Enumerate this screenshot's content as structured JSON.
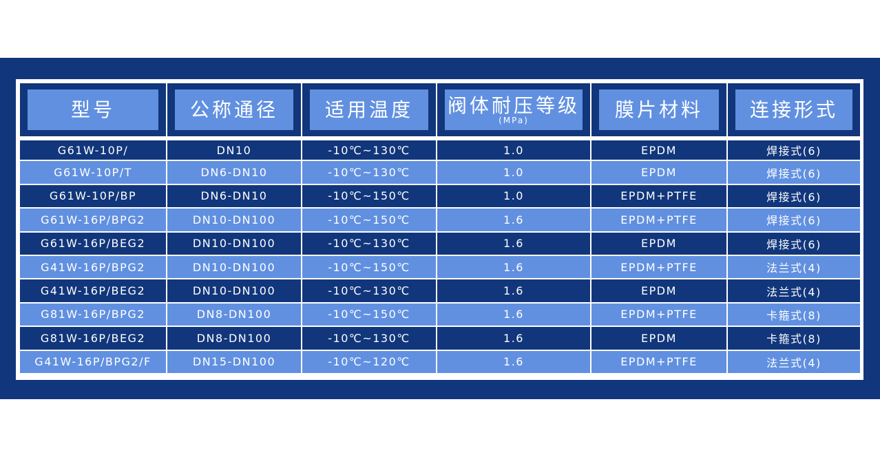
{
  "colors": {
    "dark": "#11367b",
    "light": "#6190e0"
  },
  "headers": [
    {
      "label": "型号"
    },
    {
      "label": "公称通径"
    },
    {
      "label": "适用温度"
    },
    {
      "label": "阀体耐压等级",
      "sub": "(MPa)"
    },
    {
      "label": "膜片材料"
    },
    {
      "label": "连接形式"
    }
  ],
  "rows": [
    [
      "G61W-10P/",
      "DN10",
      "-10℃~130℃",
      "1.0",
      "EPDM",
      "焊接式(6)"
    ],
    [
      "G61W-10P/T",
      "DN6-DN10",
      "-10℃~130℃",
      "1.0",
      "EPDM",
      "焊接式(6)"
    ],
    [
      "G61W-10P/BP",
      "DN6-DN10",
      "-10℃~150℃",
      "1.0",
      "EPDM+PTFE",
      "焊接式(6)"
    ],
    [
      "G61W-16P/BPG2",
      "DN10-DN100",
      "-10℃~150℃",
      "1.6",
      "EPDM+PTFE",
      "焊接式(6)"
    ],
    [
      "G61W-16P/BEG2",
      "DN10-DN100",
      "-10℃~130℃",
      "1.6",
      "EPDM",
      "焊接式(6)"
    ],
    [
      "G41W-16P/BPG2",
      "DN10-DN100",
      "-10℃~150℃",
      "1.6",
      "EPDM+PTFE",
      "法兰式(4)"
    ],
    [
      "G41W-16P/BEG2",
      "DN10-DN100",
      "-10℃~130℃",
      "1.6",
      "EPDM",
      "法兰式(4)"
    ],
    [
      "G81W-16P/BPG2",
      "DN8-DN100",
      "-10℃~150℃",
      "1.6",
      "EPDM+PTFE",
      "卡箍式(8)"
    ],
    [
      "G81W-16P/BEG2",
      "DN8-DN100",
      "-10℃~130℃",
      "1.6",
      "EPDM",
      "卡箍式(8)"
    ],
    [
      "G41W-16P/BPG2/F",
      "DN15-DN100",
      "-10℃~120℃",
      "1.6",
      "EPDM+PTFE",
      "法兰式(4)"
    ]
  ]
}
